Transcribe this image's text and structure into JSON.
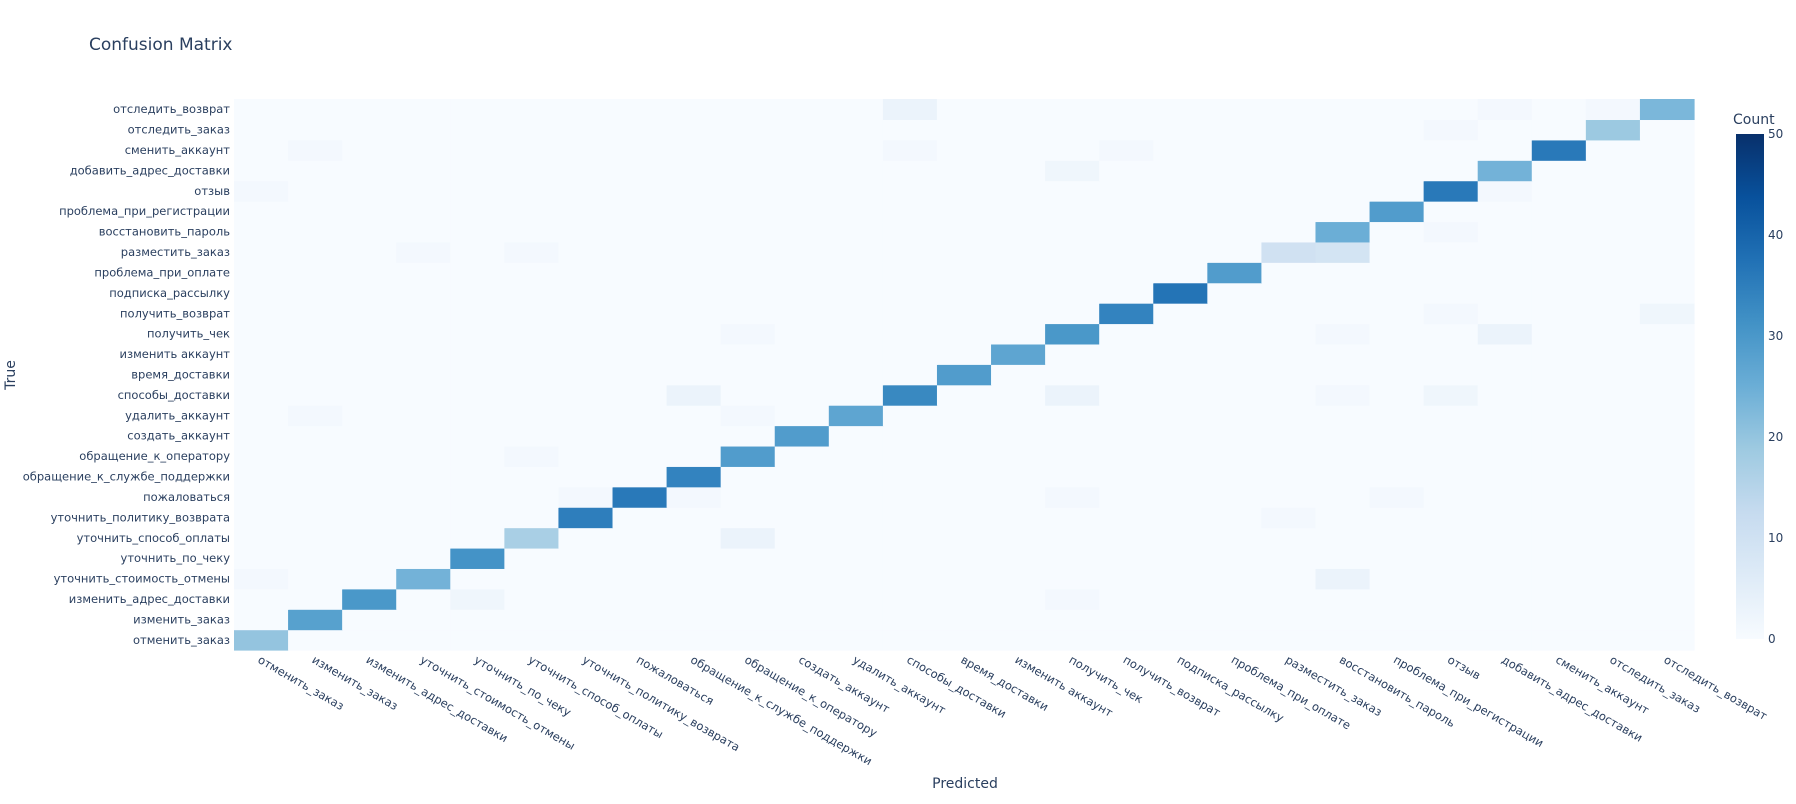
{
  "chart_data": {
    "type": "heatmap",
    "title": "Confusion Matrix",
    "xlabel": "Predicted",
    "ylabel": "True",
    "colorbar": {
      "title": "Count",
      "min": 0,
      "max": 50,
      "ticks": [
        0,
        10,
        20,
        30,
        40,
        50
      ],
      "colorscale": "Blues"
    },
    "labels": [
      "отменить_заказ",
      "изменить_заказ",
      "изменить_адрес_доставки",
      "уточнить_стоимость_отмены",
      "уточнить_по_чеку",
      "уточнить_способ_оплаты",
      "уточнить_политику_возврата",
      "пожаловаться",
      "обращение_к_службе_поддержки",
      "обращение_к_оператору",
      "создать_аккаунт",
      "удалить_аккаунт",
      "способы_доставки",
      "время_доставки",
      "изменить аккаунт",
      "получить_чек",
      "получить_возврат",
      "подписка_рассылку",
      "проблема_при_оплате",
      "разместить_заказ",
      "восстановить_пароль",
      "проблема_при_регистрации",
      "отзыв",
      "добавить_адрес_доставки",
      "сменить_аккаунт",
      "отследить_заказ",
      "отследить_возврат"
    ],
    "z": [
      [
        20,
        0,
        0,
        0,
        0,
        0,
        0,
        0,
        0,
        0,
        0,
        0,
        0,
        0,
        0,
        0,
        0,
        0,
        0,
        0,
        0,
        0,
        0,
        0,
        0,
        0,
        0
      ],
      [
        0,
        28,
        0,
        0,
        0,
        0,
        0,
        0,
        0,
        0,
        0,
        0,
        0,
        0,
        0,
        0,
        0,
        0,
        0,
        0,
        0,
        0,
        0,
        0,
        0,
        0,
        0
      ],
      [
        0,
        0,
        30,
        0,
        2,
        0,
        0,
        0,
        0,
        0,
        0,
        0,
        0,
        0,
        0,
        1,
        0,
        0,
        0,
        0,
        0,
        0,
        0,
        0,
        0,
        0,
        0
      ],
      [
        1,
        0,
        0,
        24,
        0,
        0,
        0,
        0,
        0,
        0,
        0,
        0,
        0,
        0,
        0,
        0,
        0,
        0,
        0,
        0,
        3,
        0,
        0,
        0,
        0,
        0,
        0
      ],
      [
        0,
        0,
        0,
        0,
        31,
        0,
        0,
        0,
        0,
        0,
        0,
        0,
        0,
        0,
        0,
        0,
        0,
        0,
        0,
        0,
        0,
        0,
        0,
        0,
        0,
        0,
        0
      ],
      [
        0,
        0,
        0,
        0,
        0,
        17,
        0,
        0,
        0,
        3,
        0,
        0,
        0,
        0,
        0,
        0,
        0,
        0,
        0,
        0,
        0,
        0,
        0,
        0,
        0,
        0,
        0
      ],
      [
        0,
        0,
        0,
        0,
        0,
        0,
        35,
        0,
        0,
        0,
        0,
        0,
        0,
        0,
        0,
        0,
        0,
        0,
        0,
        1,
        0,
        0,
        0,
        0,
        0,
        0,
        0
      ],
      [
        0,
        0,
        0,
        0,
        0,
        0,
        1,
        36,
        1,
        0,
        0,
        0,
        0,
        0,
        0,
        1,
        0,
        0,
        0,
        0,
        0,
        1,
        0,
        0,
        0,
        0,
        0
      ],
      [
        0,
        0,
        0,
        0,
        0,
        0,
        0,
        0,
        34,
        0,
        0,
        0,
        0,
        0,
        0,
        0,
        0,
        0,
        0,
        0,
        0,
        0,
        0,
        0,
        0,
        0,
        0
      ],
      [
        0,
        0,
        0,
        0,
        0,
        1,
        0,
        0,
        0,
        29,
        0,
        0,
        0,
        0,
        0,
        0,
        0,
        0,
        0,
        0,
        0,
        0,
        0,
        0,
        0,
        0,
        0
      ],
      [
        0,
        0,
        0,
        0,
        0,
        0,
        0,
        0,
        0,
        0,
        29,
        0,
        0,
        0,
        0,
        0,
        0,
        0,
        0,
        0,
        0,
        0,
        0,
        0,
        0,
        0,
        0
      ],
      [
        0,
        1,
        0,
        0,
        0,
        0,
        0,
        0,
        0,
        1,
        0,
        27,
        0,
        0,
        0,
        0,
        0,
        0,
        0,
        0,
        0,
        0,
        0,
        0,
        0,
        0,
        0
      ],
      [
        0,
        0,
        0,
        0,
        0,
        0,
        0,
        0,
        3,
        0,
        0,
        0,
        33,
        0,
        0,
        3,
        0,
        0,
        0,
        0,
        1,
        0,
        2,
        0,
        0,
        0,
        0
      ],
      [
        0,
        0,
        0,
        0,
        0,
        0,
        0,
        0,
        0,
        0,
        0,
        0,
        0,
        29,
        0,
        0,
        0,
        0,
        0,
        0,
        0,
        0,
        0,
        0,
        0,
        0,
        0
      ],
      [
        0,
        0,
        0,
        0,
        0,
        0,
        0,
        0,
        0,
        0,
        0,
        0,
        0,
        0,
        27,
        0,
        0,
        0,
        0,
        0,
        0,
        0,
        0,
        0,
        0,
        0,
        0
      ],
      [
        0,
        0,
        0,
        0,
        0,
        0,
        0,
        0,
        0,
        1,
        0,
        0,
        0,
        0,
        0,
        30,
        0,
        0,
        0,
        0,
        1,
        0,
        0,
        3,
        0,
        0,
        0
      ],
      [
        0,
        0,
        0,
        0,
        0,
        0,
        0,
        0,
        0,
        0,
        0,
        0,
        0,
        0,
        0,
        0,
        34,
        0,
        0,
        0,
        0,
        0,
        1,
        0,
        0,
        0,
        2
      ],
      [
        0,
        0,
        0,
        0,
        0,
        0,
        0,
        0,
        0,
        0,
        0,
        0,
        0,
        0,
        0,
        0,
        0,
        37,
        0,
        0,
        0,
        0,
        0,
        0,
        0,
        0,
        0
      ],
      [
        0,
        0,
        0,
        0,
        0,
        0,
        0,
        0,
        0,
        0,
        0,
        0,
        0,
        0,
        0,
        0,
        0,
        0,
        29,
        0,
        0,
        0,
        0,
        0,
        0,
        0,
        0
      ],
      [
        0,
        0,
        0,
        1,
        0,
        1,
        0,
        0,
        0,
        0,
        0,
        0,
        0,
        0,
        0,
        0,
        0,
        0,
        0,
        10,
        9,
        0,
        0,
        0,
        0,
        0,
        0
      ],
      [
        0,
        0,
        0,
        0,
        0,
        0,
        0,
        0,
        0,
        0,
        0,
        0,
        0,
        0,
        0,
        0,
        0,
        0,
        0,
        0,
        25,
        0,
        1,
        0,
        0,
        0,
        0
      ],
      [
        0,
        0,
        0,
        0,
        0,
        0,
        0,
        0,
        0,
        0,
        0,
        0,
        0,
        0,
        0,
        0,
        0,
        0,
        0,
        0,
        0,
        29,
        0,
        0,
        0,
        0,
        0
      ],
      [
        1,
        0,
        0,
        0,
        0,
        0,
        0,
        0,
        0,
        0,
        0,
        0,
        0,
        0,
        0,
        0,
        0,
        0,
        0,
        0,
        0,
        0,
        36,
        1,
        0,
        0,
        0
      ],
      [
        0,
        0,
        0,
        0,
        0,
        0,
        0,
        0,
        0,
        0,
        0,
        0,
        0,
        0,
        0,
        2,
        0,
        0,
        0,
        0,
        0,
        0,
        0,
        24,
        0,
        0,
        0
      ],
      [
        0,
        1,
        0,
        0,
        0,
        0,
        0,
        0,
        0,
        0,
        0,
        0,
        1,
        0,
        0,
        0,
        1,
        0,
        0,
        0,
        0,
        0,
        0,
        0,
        36,
        0,
        0
      ],
      [
        0,
        0,
        0,
        0,
        0,
        0,
        0,
        0,
        0,
        0,
        0,
        0,
        0,
        0,
        0,
        0,
        0,
        0,
        0,
        0,
        0,
        0,
        1,
        0,
        0,
        19,
        0
      ],
      [
        0,
        0,
        0,
        0,
        0,
        0,
        0,
        0,
        0,
        0,
        0,
        0,
        3,
        0,
        0,
        0,
        0,
        0,
        0,
        0,
        0,
        0,
        0,
        1,
        0,
        1,
        23
      ]
    ]
  }
}
